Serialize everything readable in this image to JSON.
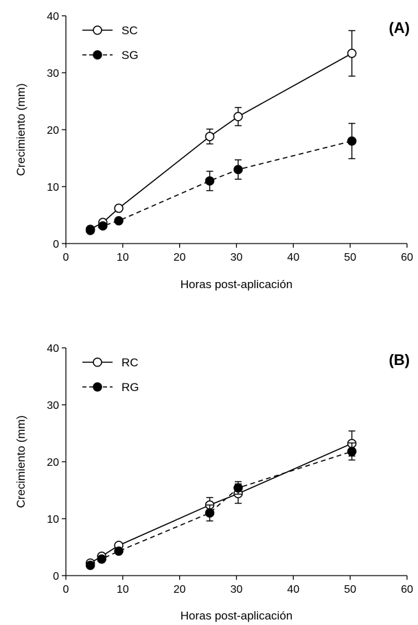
{
  "chart_data": [
    {
      "type": "line",
      "panel_label": "(A)",
      "xlabel": "Horas post-aplicación",
      "ylabel": "Crecimiento (mm)",
      "xlim": [
        0,
        60
      ],
      "ylim": [
        0,
        40
      ],
      "xticks": [
        "0",
        "10",
        "20",
        "30",
        "40",
        "50",
        "60"
      ],
      "yticks": [
        "0",
        "10",
        "20",
        "30",
        "40"
      ],
      "grid": false,
      "legend_position": "top-left",
      "series": [
        {
          "name": "SC",
          "marker": "open-circle",
          "line": "solid",
          "x": [
            4.3,
            6.5,
            9.3,
            25.3,
            30.3,
            50.3
          ],
          "y": [
            2.5,
            3.7,
            6.2,
            18.8,
            22.3,
            33.4
          ],
          "err": [
            0.2,
            0.2,
            0.3,
            1.3,
            1.6,
            4.0
          ]
        },
        {
          "name": "SG",
          "marker": "filled-circle",
          "line": "dashed",
          "x": [
            4.3,
            6.5,
            9.3,
            25.3,
            30.3,
            50.3
          ],
          "y": [
            2.3,
            3.1,
            4.0,
            11.0,
            13.0,
            18.0
          ],
          "err": [
            0.2,
            0.2,
            0.3,
            1.7,
            1.7,
            3.1
          ]
        }
      ]
    },
    {
      "type": "line",
      "panel_label": "(B)",
      "xlabel": "Horas post-aplicación",
      "ylabel": "Crecimiento (mm)",
      "xlim": [
        0,
        60
      ],
      "ylim": [
        0,
        40
      ],
      "xticks": [
        "0",
        "10",
        "20",
        "30",
        "40",
        "50",
        "60"
      ],
      "yticks": [
        "0",
        "10",
        "20",
        "30",
        "40"
      ],
      "grid": false,
      "legend_position": "top-left",
      "series": [
        {
          "name": "RC",
          "marker": "open-circle",
          "line": "solid",
          "x": [
            4.3,
            6.3,
            9.3,
            25.3,
            30.3,
            50.3
          ],
          "y": [
            2.2,
            3.4,
            5.3,
            12.4,
            14.4,
            23.2
          ],
          "err": [
            0.2,
            0.2,
            0.3,
            1.3,
            1.7,
            2.2
          ]
        },
        {
          "name": "RG",
          "marker": "filled-circle",
          "line": "dashed",
          "x": [
            4.3,
            6.3,
            9.3,
            25.3,
            30.3,
            50.3
          ],
          "y": [
            1.8,
            2.9,
            4.3,
            11.0,
            15.4,
            21.8
          ],
          "err": [
            0.2,
            0.2,
            0.3,
            1.4,
            1.1,
            1.5
          ]
        }
      ]
    }
  ]
}
